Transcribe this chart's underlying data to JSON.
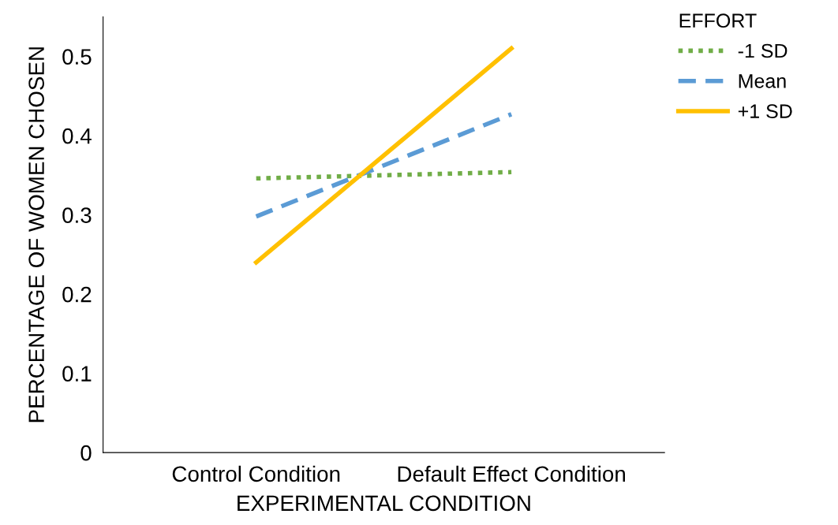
{
  "chart_data": {
    "type": "line",
    "xlabel": "EXPERIMENTAL CONDITION",
    "ylabel": "PERCENTAGE OF WOMEN CHOSEN",
    "legend_title": "EFFORT",
    "categories": [
      "Control Condition",
      "Default Effect Condition"
    ],
    "series": [
      {
        "name": "-1 SD",
        "color": "#70ad47",
        "values": [
          0.346,
          0.354
        ],
        "line_style": "dotted"
      },
      {
        "name": "Mean",
        "color": "#5b9bd5",
        "values": [
          0.298,
          0.427
        ],
        "line_style": "dashed"
      },
      {
        "name": "+1 SD",
        "color": "#ffc000",
        "values": [
          0.24,
          0.51
        ],
        "line_style": "solid"
      }
    ],
    "ylim": [
      0,
      0.55
    ],
    "yticks": [
      0,
      0.1,
      0.2,
      0.3,
      0.4,
      0.5
    ],
    "grid": false,
    "legend": "top right",
    "marker": "none"
  }
}
